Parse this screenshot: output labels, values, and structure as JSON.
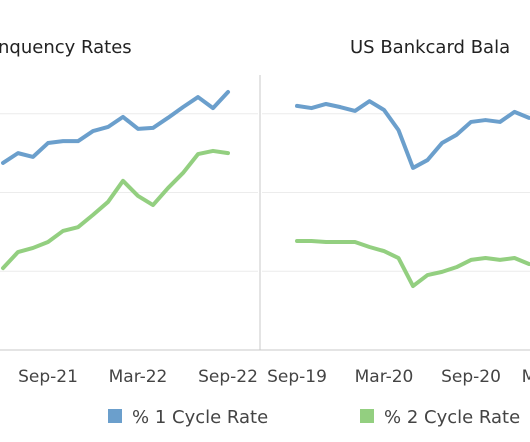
{
  "chart_data": [
    {
      "type": "line",
      "title": "nquency Rates",
      "categories": [
        null,
        null,
        null,
        "Sep-21",
        null,
        null,
        null,
        null,
        null,
        "Mar-22",
        null,
        null,
        null,
        null,
        null,
        "Sep-22"
      ],
      "series": [
        {
          "name": "% 1 Cycle Rate",
          "color": "#6b9fcc",
          "values": [
            59.4,
            62.5,
            61.3,
            65.7,
            66.3,
            66.3,
            69.5,
            70.8,
            74.0,
            70.2,
            70.5,
            73.7,
            77.1,
            80.3,
            76.8,
            81.9
          ]
        },
        {
          "name": "% 2 Cycle Rate",
          "color": "#93cf80",
          "values": [
            26.0,
            31.1,
            32.4,
            34.3,
            37.8,
            39.0,
            42.9,
            47.0,
            53.7,
            48.9,
            46.0,
            51.4,
            56.2,
            62.2,
            63.2,
            62.5
          ]
        }
      ],
      "ylim": [
        0,
        100
      ],
      "yticks": [
        25,
        50,
        75
      ],
      "grid": true,
      "legend": "bottom"
    },
    {
      "type": "line",
      "title": "US Bankcard Bala",
      "categories": [
        "Sep-19",
        null,
        null,
        null,
        null,
        null,
        "Mar-20",
        null,
        null,
        null,
        null,
        null,
        "Sep-20",
        null,
        null,
        null,
        "M"
      ],
      "series": [
        {
          "color": "#6b9fcc",
          "values": [
            77.5,
            76.8,
            78.1,
            77.1,
            75.9,
            79.0,
            76.2,
            69.8,
            57.8,
            60.3,
            65.7,
            68.3,
            72.4,
            73.0,
            72.4,
            75.6,
            73.7
          ]
        },
        {
          "color": "#93cf80",
          "values": [
            34.6,
            34.6,
            34.3,
            34.3,
            34.3,
            32.7,
            31.4,
            29.2,
            20.3,
            23.8,
            24.8,
            26.3,
            28.6,
            29.2,
            28.6,
            29.2,
            27.3
          ]
        }
      ],
      "ylim": [
        0,
        100
      ],
      "yticks": [
        25,
        50,
        75
      ],
      "grid": true
    }
  ]
}
